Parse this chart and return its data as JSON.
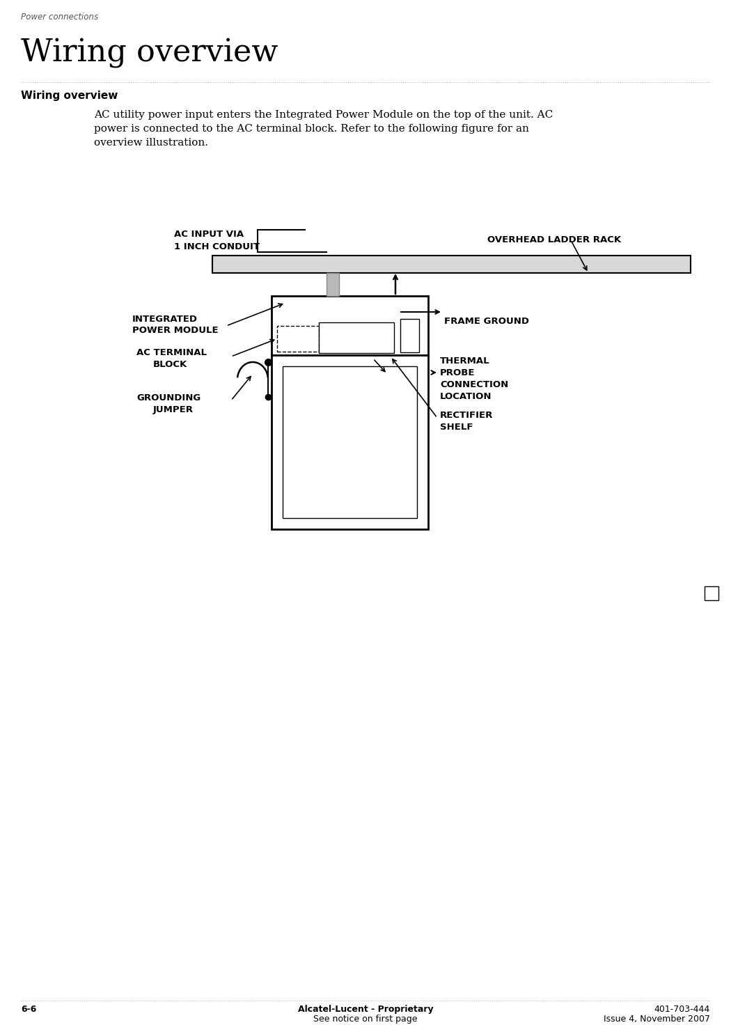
{
  "page_title": "Power connections",
  "section_title": "Wiring overview",
  "subsection_title": "Wiring overview",
  "body_text": "AC utility power input enters the Integrated Power Module on the top of the unit. AC\npower is connected to the AC terminal block. Refer to the following figure for an\noverview illustration.",
  "footer_left": "6-6",
  "footer_center_line1": "Alcatel-Lucent - Proprietary",
  "footer_center_line2": "See notice on first page",
  "footer_right_line1": "401-703-444",
  "footer_right_line2": "Issue 4, November 2007",
  "bg_color": "#ffffff",
  "text_color": "#000000"
}
